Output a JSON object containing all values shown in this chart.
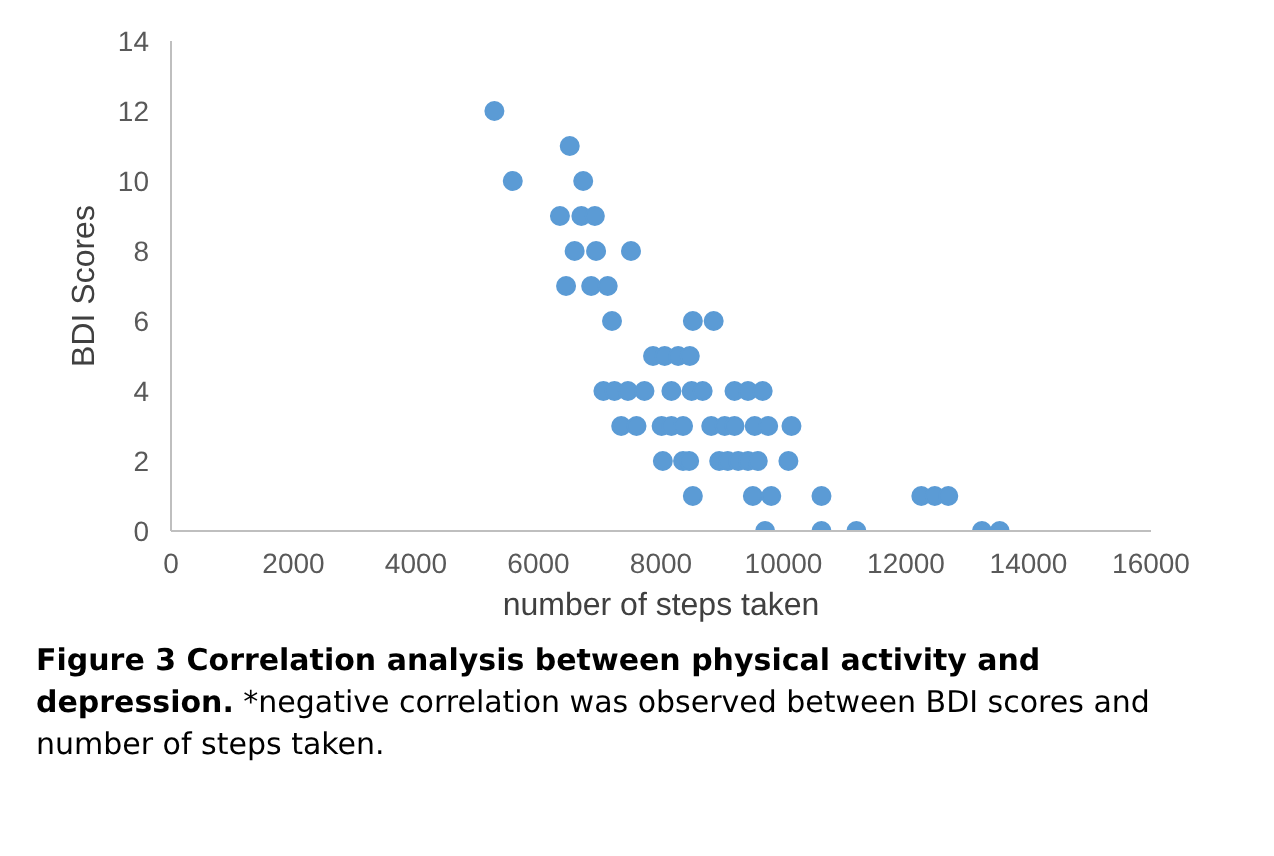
{
  "chart_data": {
    "type": "scatter",
    "xlabel": "number of steps taken",
    "ylabel": "BDI Scores",
    "xlim": [
      0,
      16000
    ],
    "xticks": [
      0,
      2000,
      4000,
      6000,
      8000,
      10000,
      12000,
      14000,
      16000
    ],
    "ylim": [
      0,
      14
    ],
    "yticks": [
      0,
      2,
      4,
      6,
      8,
      10,
      12,
      14
    ],
    "grid": false,
    "marker": "circle",
    "series": [
      {
        "color": "#5b9bd5",
        "x": [
          5280,
          6510,
          5580,
          6730,
          6350,
          6700,
          6920,
          6590,
          6940,
          7510,
          6450,
          6860,
          7130,
          7200,
          8520,
          8860,
          7870,
          8060,
          8280,
          8470,
          7060,
          7240,
          7460,
          7730,
          8170,
          8500,
          8680,
          9200,
          9420,
          9660,
          7350,
          7600,
          8010,
          8170,
          8360,
          8820,
          9040,
          9200,
          9530,
          9750,
          10130,
          8030,
          8360,
          8460,
          8950,
          9090,
          9260,
          9420,
          9580,
          10080,
          8520,
          9500,
          9800,
          10620,
          12250,
          12470,
          12690,
          9700,
          10620,
          11190,
          13240,
          13530
        ],
        "values": [
          12,
          11,
          10,
          10,
          9,
          9,
          9,
          8,
          8,
          8,
          7,
          7,
          7,
          6,
          6,
          6,
          5,
          5,
          5,
          5,
          4,
          4,
          4,
          4,
          4,
          4,
          4,
          4,
          4,
          4,
          3,
          3,
          3,
          3,
          3,
          3,
          3,
          3,
          3,
          3,
          3,
          2,
          2,
          2,
          2,
          2,
          2,
          2,
          2,
          2,
          1,
          1,
          1,
          1,
          1,
          1,
          1,
          0,
          0,
          0,
          0,
          0
        ]
      }
    ],
    "annotations": [
      "Figure 3 Correlation analysis between physical activity and depression.",
      "*negative correlation was observed between BDI scores and number of steps taken."
    ]
  }
}
